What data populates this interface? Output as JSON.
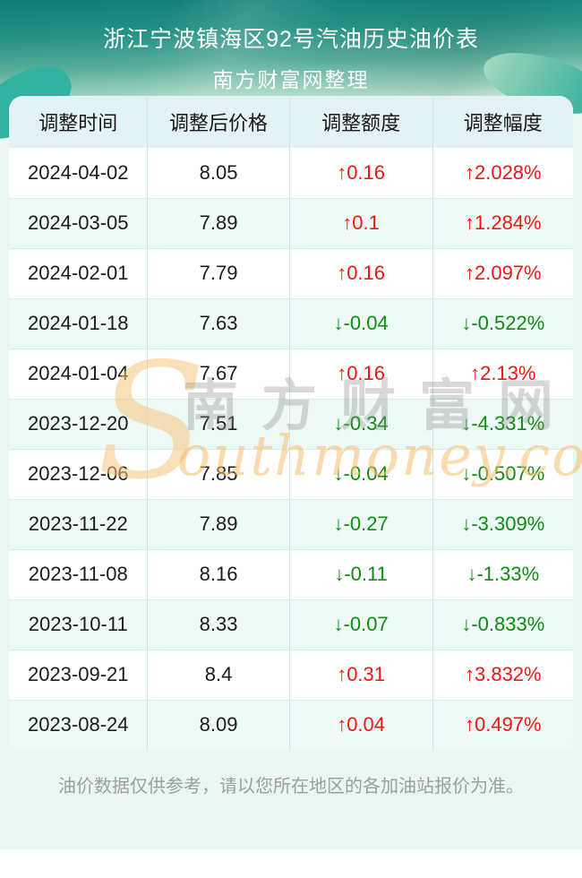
{
  "page": {
    "header": {
      "title": "浙江宁波镇海区92号汽油历史油价表",
      "subtitle": "南方财富网整理"
    },
    "watermark": {
      "initial": "S",
      "cn": "南方财富网",
      "en": "outhmoney.com"
    },
    "footer": {
      "note": "油价数据仅供参考，请以您所在地区的各加油站报价为准。"
    }
  },
  "table": {
    "columns": [
      "调整时间",
      "调整后价格",
      "调整额度",
      "调整幅度"
    ],
    "rows": [
      {
        "date": "2024-04-02",
        "price": "8.05",
        "change": "↑0.16",
        "pct": "↑2.028%",
        "dir": "up"
      },
      {
        "date": "2024-03-05",
        "price": "7.89",
        "change": "↑0.1",
        "pct": "↑1.284%",
        "dir": "up"
      },
      {
        "date": "2024-02-01",
        "price": "7.79",
        "change": "↑0.16",
        "pct": "↑2.097%",
        "dir": "up"
      },
      {
        "date": "2024-01-18",
        "price": "7.63",
        "change": "↓-0.04",
        "pct": "↓-0.522%",
        "dir": "down"
      },
      {
        "date": "2024-01-04",
        "price": "7.67",
        "change": "↑0.16",
        "pct": "↑2.13%",
        "dir": "up"
      },
      {
        "date": "2023-12-20",
        "price": "7.51",
        "change": "↓-0.34",
        "pct": "↓-4.331%",
        "dir": "down"
      },
      {
        "date": "2023-12-06",
        "price": "7.85",
        "change": "↓-0.04",
        "pct": "↓-0.507%",
        "dir": "down"
      },
      {
        "date": "2023-11-22",
        "price": "7.89",
        "change": "↓-0.27",
        "pct": "↓-3.309%",
        "dir": "down"
      },
      {
        "date": "2023-11-08",
        "price": "8.16",
        "change": "↓-0.11",
        "pct": "↓-1.33%",
        "dir": "down"
      },
      {
        "date": "2023-10-11",
        "price": "8.33",
        "change": "↓-0.07",
        "pct": "↓-0.833%",
        "dir": "down"
      },
      {
        "date": "2023-09-21",
        "price": "8.4",
        "change": "↑0.31",
        "pct": "↑3.832%",
        "dir": "up"
      },
      {
        "date": "2023-08-24",
        "price": "8.09",
        "change": "↑0.04",
        "pct": "↑0.497%",
        "dir": "up"
      }
    ]
  },
  "colors": {
    "up_red": "#f3150f",
    "down_green": "#0f8c0f",
    "hero_teal_dark": "#117c74",
    "hero_teal_light": "#e2f2ec",
    "mint_background": "#e9f7f4",
    "header_row_bg": "#e2f2f5",
    "alt_row_bg": "#edf9f6",
    "grid_line": "#c7eae2",
    "watermark_orange": "#f5bc6e",
    "footnote_gray": "#9b9f9f"
  },
  "chart_data": {
    "type": "table",
    "title": "浙江宁波镇海区92号汽油历史油价表",
    "columns": [
      "调整时间",
      "调整后价格",
      "调整额度",
      "调整幅度"
    ],
    "rows": [
      [
        "2024-04-02",
        8.05,
        0.16,
        "2.028%"
      ],
      [
        "2024-03-05",
        7.89,
        0.1,
        "1.284%"
      ],
      [
        "2024-02-01",
        7.79,
        0.16,
        "2.097%"
      ],
      [
        "2024-01-18",
        7.63,
        -0.04,
        "-0.522%"
      ],
      [
        "2024-01-04",
        7.67,
        0.16,
        "2.13%"
      ],
      [
        "2023-12-20",
        7.51,
        -0.34,
        "-4.331%"
      ],
      [
        "2023-12-06",
        7.85,
        -0.04,
        "-0.507%"
      ],
      [
        "2023-11-22",
        7.89,
        -0.27,
        "-3.309%"
      ],
      [
        "2023-11-08",
        8.16,
        -0.11,
        "-1.33%"
      ],
      [
        "2023-10-11",
        8.33,
        -0.07,
        "-0.833%"
      ],
      [
        "2023-09-21",
        8.4,
        0.31,
        "3.832%"
      ],
      [
        "2023-08-24",
        8.09,
        0.04,
        "0.497%"
      ]
    ]
  }
}
